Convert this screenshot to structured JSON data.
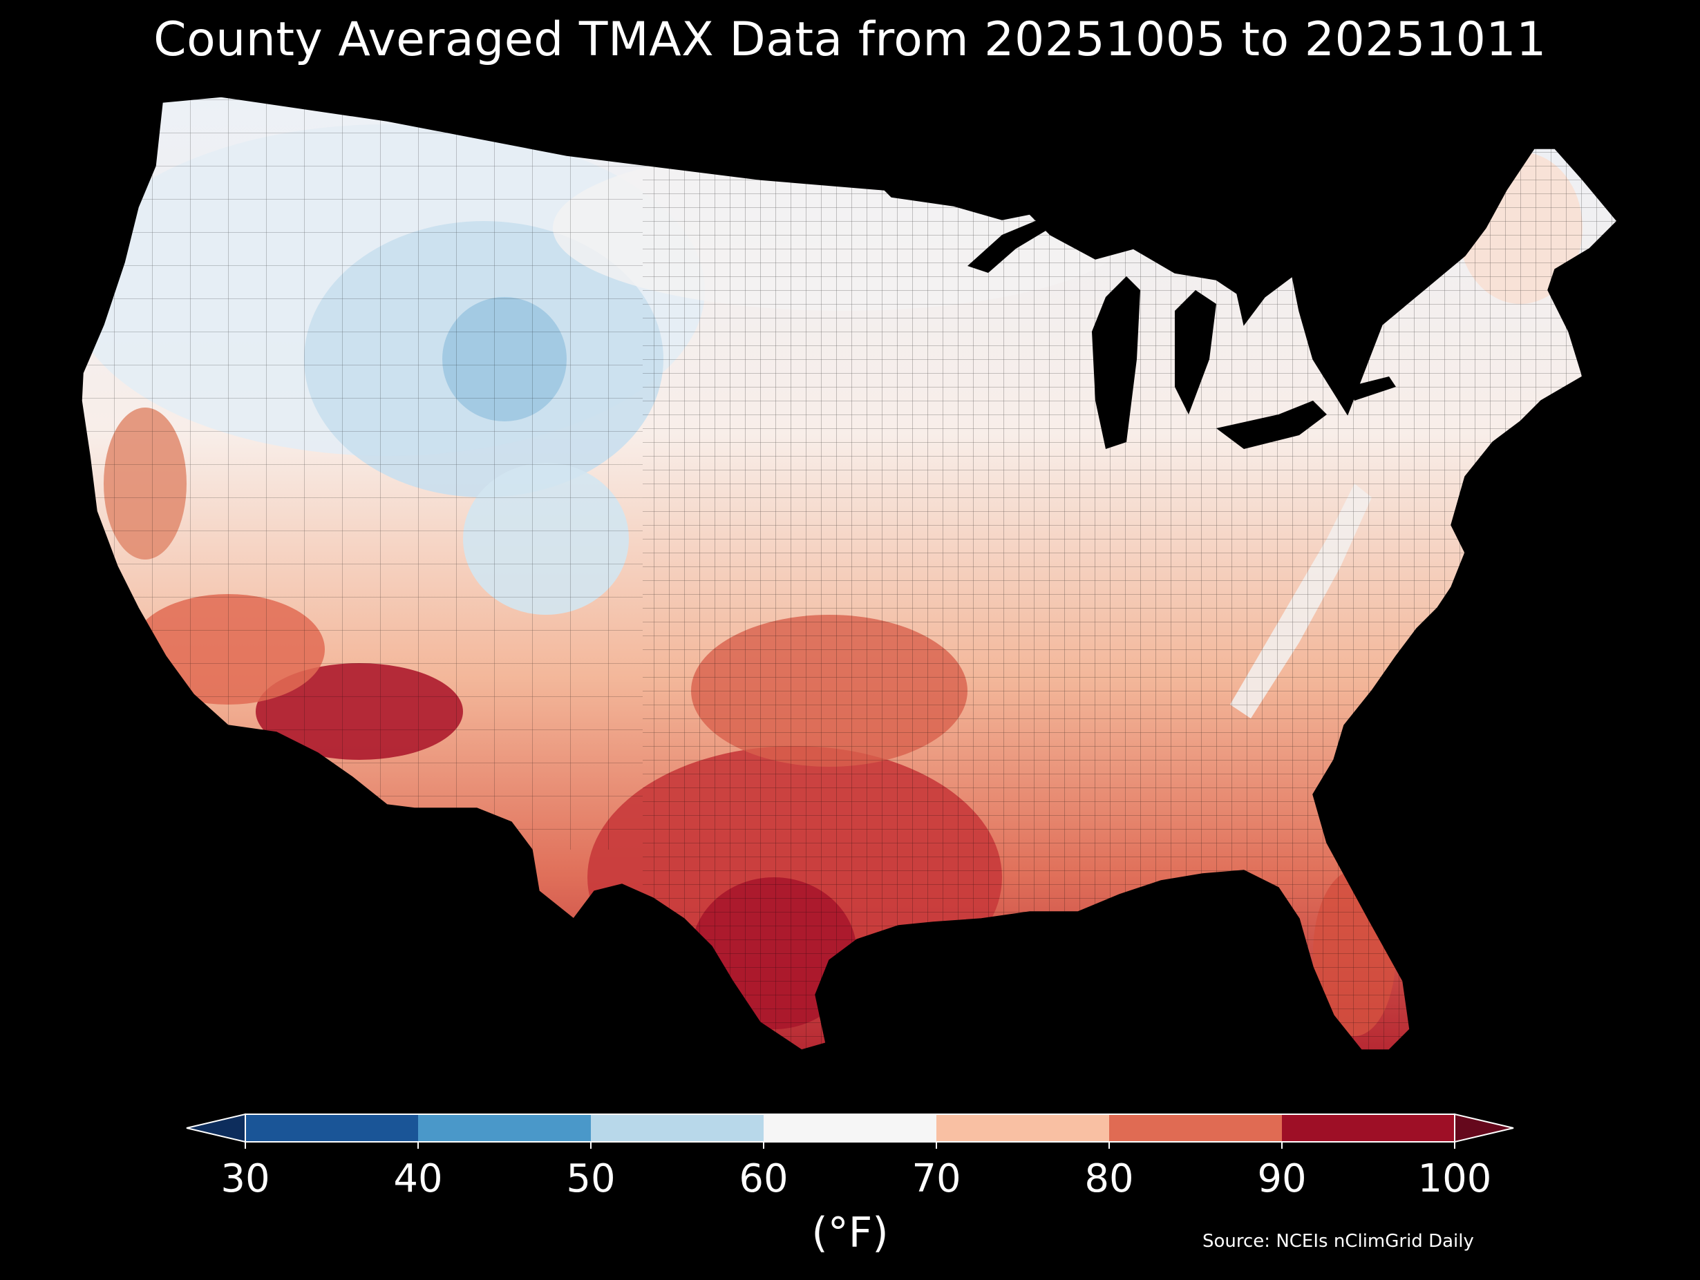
{
  "title": "County Averaged TMAX Data from 20251005 to 20251011",
  "map": {
    "region": "Contiguous United States counties",
    "variable": "TMAX"
  },
  "colorbar": {
    "ticks": [
      "30",
      "40",
      "50",
      "60",
      "70",
      "80",
      "90",
      "100"
    ],
    "bins": [
      {
        "range": [
          30,
          40
        ],
        "color": "#1a5597"
      },
      {
        "range": [
          40,
          50
        ],
        "color": "#4a98c9"
      },
      {
        "range": [
          50,
          60
        ],
        "color": "#b8d8ea"
      },
      {
        "range": [
          60,
          70
        ],
        "color": "#f6f6f6"
      },
      {
        "range": [
          70,
          80
        ],
        "color": "#f9c0a3"
      },
      {
        "range": [
          80,
          90
        ],
        "color": "#e06b53"
      },
      {
        "range": [
          90,
          100
        ],
        "color": "#9e0f26"
      }
    ],
    "under_color": "#0d2d5c",
    "over_color": "#65081c",
    "unit": "(°F)"
  },
  "source": "Source: NCEIs nClimGrid Daily"
}
